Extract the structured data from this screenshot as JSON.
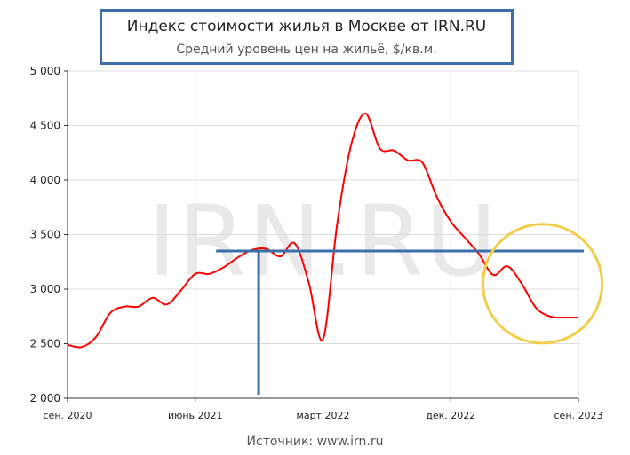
{
  "chart_data": {
    "type": "line",
    "title": "Индекс стоимости жилья в Москве от IRN.RU",
    "subtitle": "Средний уровень цен на жильё, $/кв.м.",
    "source": "Источник: www.irn.ru",
    "watermark": "IRN.RU",
    "ylim": [
      2000,
      5000
    ],
    "yticks": [
      2000,
      2500,
      3000,
      3500,
      4000,
      4500,
      5000
    ],
    "ytick_labels": [
      "2 000",
      "2 500",
      "3 000",
      "3 500",
      "4 000",
      "4 500",
      "5 000"
    ],
    "xlim": [
      "2020-09-01",
      "2023-09-01"
    ],
    "xticks": [
      "2020-09-01",
      "2021-06-01",
      "2022-03-01",
      "2022-12-01",
      "2023-09-01"
    ],
    "xtick_labels": [
      "сен. 2020",
      "июнь 2021",
      "март 2022",
      "дек. 2022",
      "сен. 2023"
    ],
    "grid": true,
    "series_color": "#ff0000",
    "points": [
      [
        "2020-09-01",
        2490
      ],
      [
        "2020-10-01",
        2470
      ],
      [
        "2020-11-01",
        2560
      ],
      [
        "2020-12-01",
        2780
      ],
      [
        "2021-01-01",
        2840
      ],
      [
        "2021-02-01",
        2840
      ],
      [
        "2021-03-01",
        2920
      ],
      [
        "2021-04-01",
        2860
      ],
      [
        "2021-05-01",
        2990
      ],
      [
        "2021-06-01",
        3140
      ],
      [
        "2021-07-01",
        3140
      ],
      [
        "2021-08-01",
        3200
      ],
      [
        "2021-09-01",
        3290
      ],
      [
        "2021-10-01",
        3360
      ],
      [
        "2021-11-01",
        3370
      ],
      [
        "2021-12-01",
        3300
      ],
      [
        "2022-01-01",
        3420
      ],
      [
        "2022-02-01",
        3060
      ],
      [
        "2022-03-01",
        2540
      ],
      [
        "2022-04-01",
        3600
      ],
      [
        "2022-05-01",
        4330
      ],
      [
        "2022-06-01",
        4610
      ],
      [
        "2022-07-01",
        4290
      ],
      [
        "2022-08-01",
        4270
      ],
      [
        "2022-09-01",
        4180
      ],
      [
        "2022-10-01",
        4160
      ],
      [
        "2022-11-01",
        3850
      ],
      [
        "2022-12-01",
        3620
      ],
      [
        "2023-01-01",
        3470
      ],
      [
        "2023-02-01",
        3320
      ],
      [
        "2023-03-01",
        3130
      ],
      [
        "2023-04-01",
        3210
      ],
      [
        "2023-05-01",
        3050
      ],
      [
        "2023-06-01",
        2830
      ],
      [
        "2023-07-01",
        2750
      ],
      [
        "2023-08-01",
        2740
      ],
      [
        "2023-09-01",
        2740
      ]
    ],
    "annotations": {
      "color_lines": "#3b6fa8",
      "color_circle": "#f2cd4a",
      "hline": {
        "y": 3350,
        "x_from": "2021-07-15",
        "x_to": "2023-09-01"
      },
      "vline": {
        "x": "2021-10-15",
        "y_from": 2000,
        "y_to": 3350
      },
      "circle": {
        "center_x": "2023-06-15",
        "center_y": 3050,
        "radius_months": 4.2
      }
    }
  }
}
